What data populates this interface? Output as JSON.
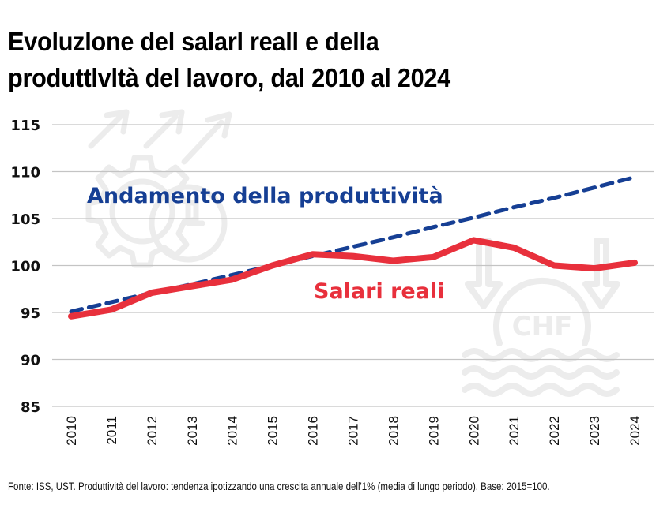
{
  "title_lines": [
    "Evoluzlone del salarl reall e della",
    "produttlvltà del lavoro, dal 2010 al 2024"
  ],
  "source": "Fonte: ISS, UST. Produttività del lavoro: tendenza ipotizzando una crescita annuale dell'1% (media di lungo periodo). Base: 2015=100.",
  "watermark_text": "CHF",
  "colors": {
    "salari": "#e8303c",
    "produttivita": "#163f94",
    "grid": "#c4c4c4",
    "watermark": "#ececec"
  },
  "chart_data": {
    "type": "line",
    "title": "Evoluzlone del salarl reall e della produttlvltà del lavoro, dal 2010 al 2024",
    "xlabel": "",
    "ylabel": "",
    "ylim": [
      85,
      115
    ],
    "yticks": [
      85,
      90,
      95,
      100,
      105,
      110,
      115
    ],
    "grid": true,
    "categories": [
      "2010",
      "2011",
      "2012",
      "2013",
      "2014",
      "2015",
      "2016",
      "2017",
      "2018",
      "2019",
      "2020",
      "2021",
      "2022",
      "2023",
      "2024"
    ],
    "series": [
      {
        "name": "Andamento della produttività",
        "style": "dashed",
        "color": "#163f94",
        "values": [
          95.1,
          96.1,
          97.1,
          98.0,
          99.0,
          100.0,
          101.0,
          102.0,
          103.0,
          104.1,
          105.1,
          106.2,
          107.2,
          108.3,
          109.4
        ]
      },
      {
        "name": "Salari reali",
        "style": "solid",
        "color": "#e8303c",
        "values": [
          94.6,
          95.3,
          97.1,
          97.8,
          98.5,
          100.0,
          101.2,
          101.0,
          100.5,
          100.9,
          102.7,
          101.9,
          100.0,
          99.7,
          100.3
        ]
      }
    ],
    "annotations": [
      "Andamento della produttività",
      "Salari reali"
    ]
  }
}
